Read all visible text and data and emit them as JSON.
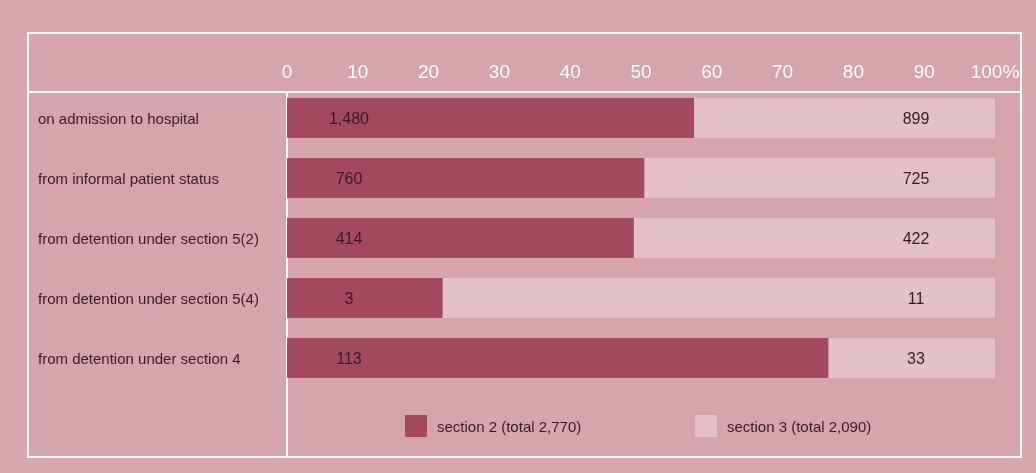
{
  "chart_data": {
    "type": "bar",
    "orientation": "horizontal",
    "stacked": true,
    "categories": [
      "on admission to hospital",
      "from informal patient status",
      "from detention under section 5(2)",
      "from detention under section 5(4)",
      "from detention under section 4"
    ],
    "series": [
      {
        "name": "section 2 (total 2,770)",
        "color": "#a44a60",
        "values": [
          57.5,
          50.5,
          49,
          22,
          76.5
        ]
      },
      {
        "name": "section 3 (total 2,090)",
        "color": "#e4c1c6",
        "values": [
          42.5,
          49.5,
          51,
          78,
          23.5
        ]
      }
    ],
    "xlim": [
      0,
      100
    ],
    "xticks": [
      0,
      10,
      20,
      30,
      40,
      50,
      60,
      70,
      80,
      90,
      {
        "value": 100,
        "label": "100%"
      }
    ],
    "annotations": [
      "1,480",
      "760",
      "414",
      "3",
      "113",
      "899",
      "725",
      "422",
      "11",
      "33"
    ],
    "legend": "bottom"
  }
}
